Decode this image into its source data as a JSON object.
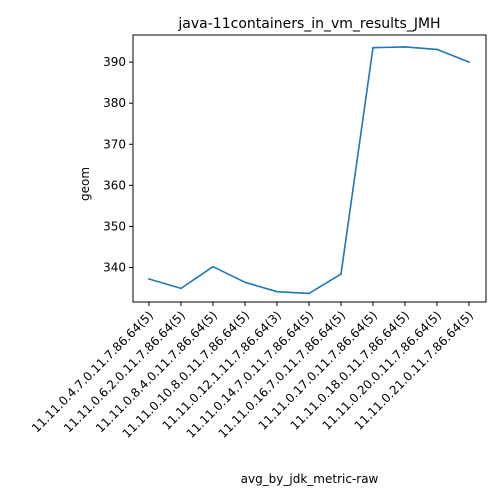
{
  "chart_data": {
    "type": "line",
    "title": "java-11containers_in_vm_results_JMH",
    "xlabel": "avg_by_jdk_metric-raw",
    "ylabel": "geom",
    "categories": [
      "11.11.0.4.7.0.11.7.86.64(5)",
      "11.11.0.6.2.0.11.7.86.64(5)",
      "11.11.0.8.4.0.11.7.86.64(5)",
      "11.11.0.10.8.0.11.7.86.64(5)",
      "11.11.0.12.1.11.7.86.64(3)",
      "11.11.0.14.7.0.11.7.86.64(5)",
      "11.11.0.16.7.0.11.7.86.64(5)",
      "11.11.0.17.0.11.7.86.64(5)",
      "11.11.0.18.0.11.7.86.64(5)",
      "11.11.0.20.0.11.7.86.64(5)",
      "11.11.0.21.0.11.7.86.64(5)"
    ],
    "series": [
      {
        "values": [
          337.2,
          334.9,
          340.2,
          336.4,
          334.1,
          333.7,
          338.4,
          393.5,
          393.7,
          393.1,
          390.0
        ],
        "color": "#1f77b4"
      }
    ],
    "yticks": [
      340,
      350,
      360,
      370,
      380,
      390
    ],
    "ylim": [
      331.6,
      396.6
    ],
    "grid": false,
    "legend": "none"
  }
}
